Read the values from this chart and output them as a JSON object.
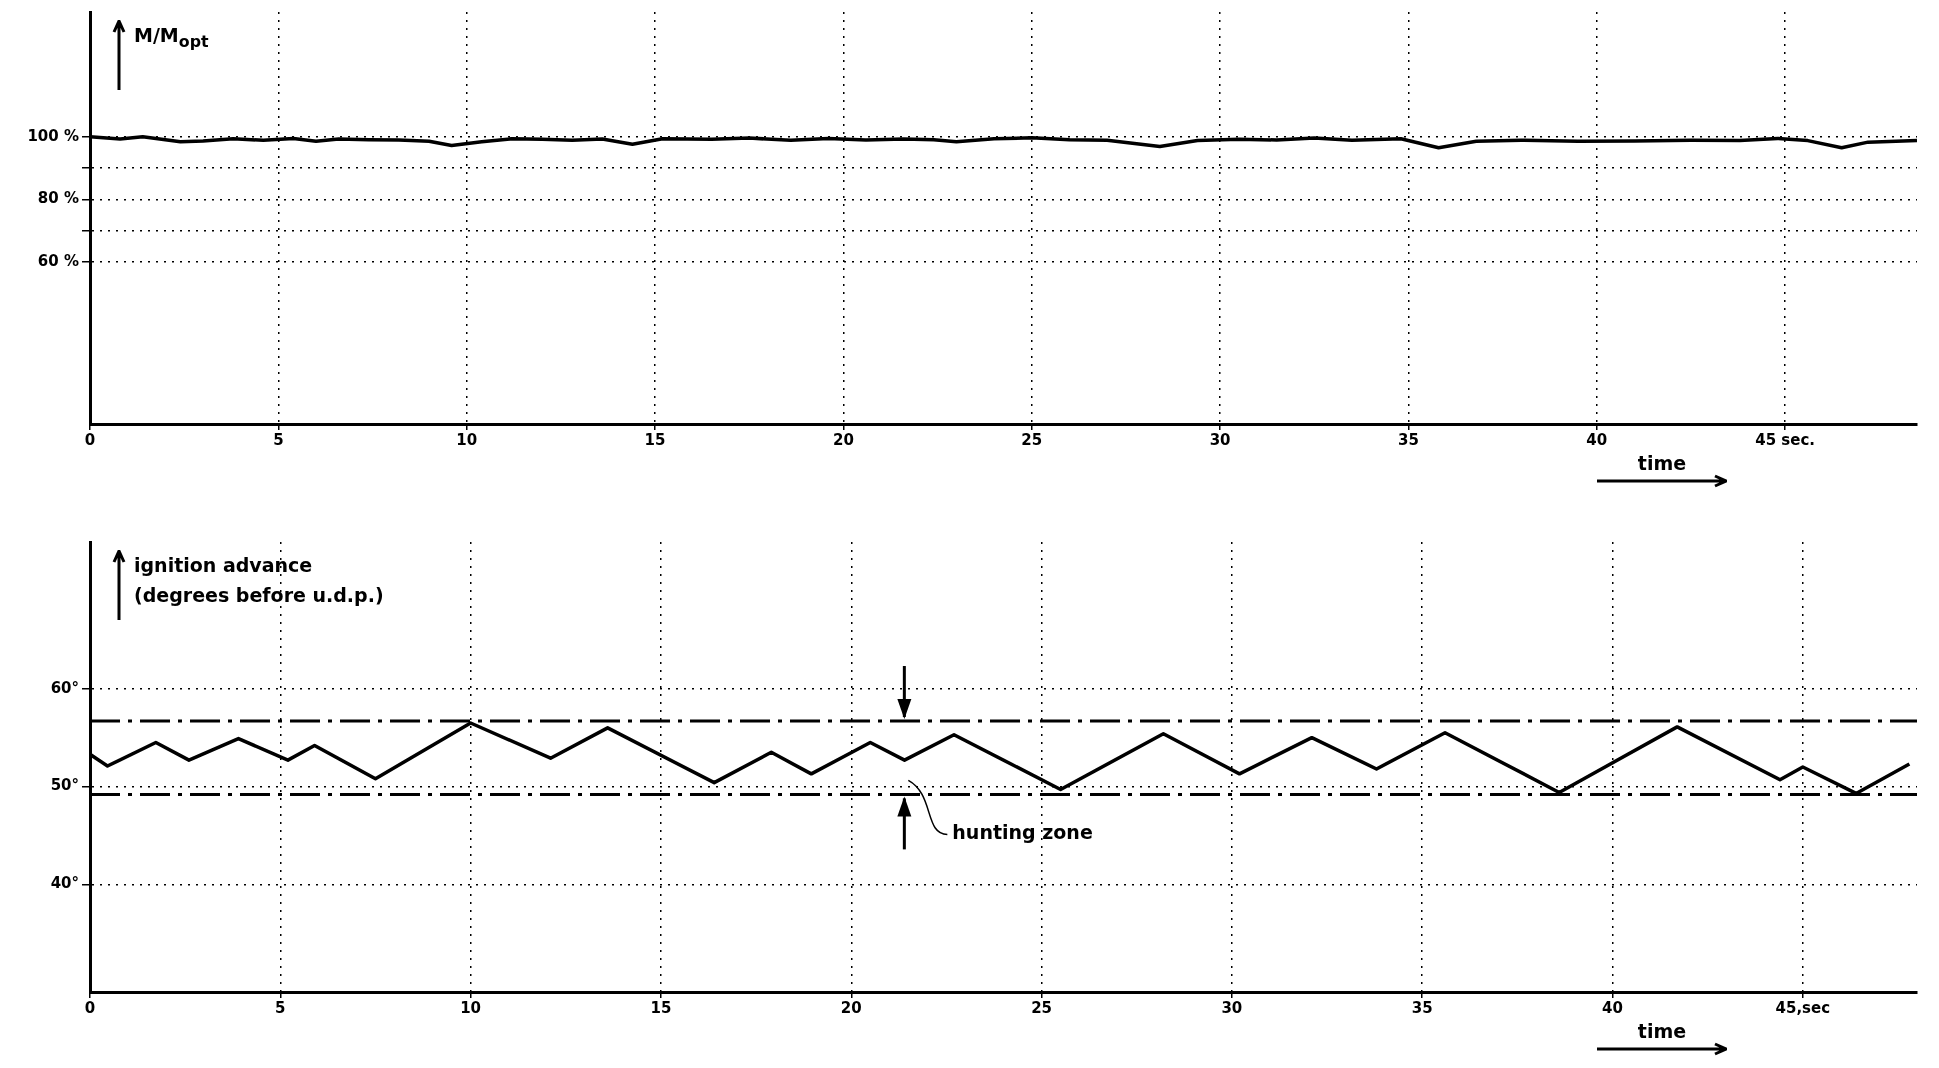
{
  "chart_data": [
    {
      "type": "line",
      "ylabel": "M/M$_{opt}$",
      "xlabel": "time",
      "xlim": [
        0,
        48.5
      ],
      "xticks": [
        0,
        5,
        10,
        15,
        20,
        25,
        30,
        35,
        40,
        {
          "value": 45,
          "label": "45 sec."
        }
      ],
      "ylim": [
        8,
        140
      ],
      "yticks": [
        {
          "value": 100,
          "label": "100 %"
        },
        {
          "value": 90,
          "label": null
        },
        {
          "value": 80,
          "label": "80 %"
        },
        {
          "value": 70,
          "label": null
        },
        {
          "value": 60,
          "label": "60 %"
        }
      ],
      "grid": true,
      "legend": false,
      "marker": "none",
      "line_style": "solid",
      "series": [
        {
          "color": "#000000",
          "x": [
            0,
            0.8,
            1.4,
            2.4,
            3.0,
            3.8,
            4.6,
            5.4,
            6.0,
            6.6,
            7.4,
            8.2,
            9.0,
            9.6,
            10.4,
            11.2,
            12.0,
            12.8,
            13.6,
            14.4,
            15.2,
            16.5,
            17.5,
            18.6,
            19.6,
            20.6,
            21.6,
            22.4,
            23.0,
            24.0,
            25.0,
            26.0,
            27.0,
            28.4,
            29.4,
            30.5,
            31.5,
            32.5,
            33.5,
            34.8,
            35.8,
            36.8,
            38.0,
            39.5,
            41.0,
            42.5,
            43.8,
            44.8,
            45.6,
            46.5,
            47.2,
            48.5
          ],
          "values": [
            100,
            99.3,
            100,
            98.4,
            98.7,
            99.4,
            98.9,
            99.5,
            98.6,
            99.3,
            99.1,
            99.0,
            98.6,
            97.2,
            98.4,
            99.4,
            99.2,
            98.9,
            99.3,
            97.6,
            99.4,
            99.2,
            99.6,
            98.9,
            99.5,
            99.0,
            99.3,
            99.1,
            98.4,
            99.4,
            99.7,
            99.1,
            98.9,
            96.9,
            98.8,
            99.2,
            99.0,
            99.6,
            98.9,
            99.4,
            96.5,
            98.6,
            98.9,
            98.6,
            98.7,
            98.9,
            98.8,
            99.5,
            98.8,
            96.5,
            98.3,
            98.8
          ]
        }
      ]
    },
    {
      "type": "line",
      "ylabel": "ignition advance\n(degrees before u.d.p.)",
      "xlabel": "time",
      "xlim": [
        0,
        48
      ],
      "xticks": [
        0,
        5,
        10,
        15,
        20,
        25,
        30,
        35,
        40,
        {
          "value": 45,
          "label": "45,sec"
        }
      ],
      "ylim": [
        29,
        75
      ],
      "yticks": [
        {
          "value": 60,
          "label": "60°"
        },
        {
          "value": 50,
          "label": "50°"
        },
        {
          "value": 40,
          "label": "40°"
        }
      ],
      "grid": true,
      "legend": false,
      "marker": "none",
      "line_style": "solid",
      "ref_lines": [
        {
          "axis": "y",
          "value": 56.7,
          "line_style": "dashed",
          "color": "#000000"
        },
        {
          "axis": "y",
          "value": 49.2,
          "line_style": "dashed",
          "color": "#000000"
        }
      ],
      "annotations": [
        "hunting zone"
      ],
      "series": [
        {
          "color": "#000000",
          "x": [
            0,
            0.46,
            1.73,
            2.6,
            3.9,
            5.2,
            5.9,
            7.5,
            10.0,
            12.1,
            13.6,
            16.4,
            17.9,
            18.95,
            20.5,
            21.4,
            22.7,
            25.5,
            28.2,
            30.2,
            32.1,
            33.8,
            35.6,
            38.6,
            41.7,
            44.4,
            45.0,
            46.4,
            47.8
          ],
          "values": [
            53.3,
            52.1,
            54.5,
            52.7,
            54.9,
            52.7,
            54.2,
            50.8,
            56.5,
            52.9,
            56.0,
            50.4,
            53.5,
            51.3,
            54.5,
            52.7,
            55.3,
            49.7,
            55.4,
            51.3,
            55.0,
            51.8,
            55.5,
            49.4,
            56.1,
            50.7,
            52.0,
            49.3,
            52.3
          ]
        }
      ]
    }
  ]
}
